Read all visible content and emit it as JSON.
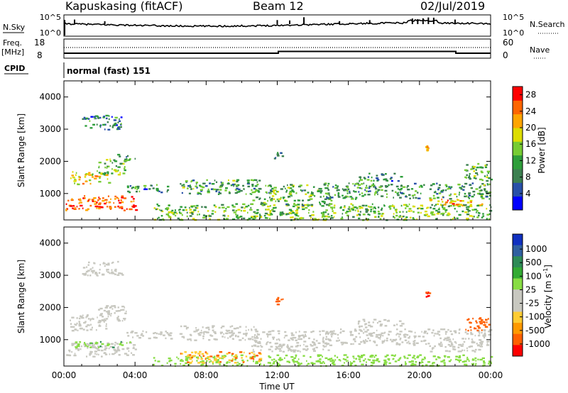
{
  "header": {
    "station": "Kapuskasing (fitACF)",
    "beam": "Beam 12",
    "date": "02/Jul/2019"
  },
  "top_panels": {
    "sky_label": "N.Sky",
    "search_label": "N.Search",
    "left_ticks": [
      "10^5",
      "10^0"
    ],
    "right_ticks": [
      "10^5",
      "10^0"
    ],
    "freq_label": "Freq.",
    "freq_unit": "[MHz]",
    "freq_ticks": [
      "18",
      "8"
    ],
    "nave_label": "Nave",
    "nave_ticks": [
      "60",
      "0"
    ],
    "cpid_label": "CPID",
    "cpid_value": "normal (fast) 151"
  },
  "colors": {
    "power_scale": [
      "#0000ff",
      "#2850a8",
      "#3c8050",
      "#2e9e3a",
      "#77cc33",
      "#dddd00",
      "#ffa500",
      "#ff6600",
      "#ff0000"
    ],
    "velocity_scale": [
      "#ff0000",
      "#ff6000",
      "#ff9900",
      "#ffcc33",
      "#c8c8c0",
      "#c8c8c0",
      "#88dd44",
      "#33aa33",
      "#2e8b57",
      "#3060a0",
      "#1030c0"
    ],
    "ground_scatter": "#c8c8c0"
  },
  "chart_data": [
    {
      "type": "heatmap",
      "name": "power-panel",
      "ylabel": "Slant Range [km]",
      "x_ticks": [
        "00:00",
        "04:00",
        "08:00",
        "12:00",
        "16:00",
        "20:00",
        "00:00"
      ],
      "y_ticks": [
        "1000",
        "2000",
        "3000",
        "4000"
      ],
      "xlim_hours": [
        0,
        24
      ],
      "ylim_km": [
        180,
        4500
      ],
      "colorbar": {
        "label": "Power [dB]",
        "ticks": [
          "4",
          "8",
          "12",
          "16",
          "20",
          "24",
          "28"
        ],
        "range": [
          0,
          30
        ]
      },
      "regions": [
        {
          "t0": 0.0,
          "t1": 4.0,
          "r0": 500,
          "r1": 950,
          "level": 26
        },
        {
          "t0": 0.3,
          "t1": 2.5,
          "r0": 1300,
          "r1": 1700,
          "level": 19
        },
        {
          "t0": 1.8,
          "t1": 3.5,
          "r0": 1600,
          "r1": 2100,
          "level": 14
        },
        {
          "t0": 1.0,
          "t1": 3.3,
          "r0": 3000,
          "r1": 3450,
          "level": 8
        },
        {
          "t0": 3.0,
          "t1": 4.0,
          "r0": 2050,
          "r1": 2250,
          "level": 11
        },
        {
          "t0": 3.5,
          "t1": 6.0,
          "r0": 1050,
          "r1": 1300,
          "level": 9
        },
        {
          "t0": 5.0,
          "t1": 24.0,
          "r0": 200,
          "r1": 700,
          "level": 14
        },
        {
          "t0": 6.5,
          "t1": 11.0,
          "r0": 1000,
          "r1": 1450,
          "level": 11
        },
        {
          "t0": 10.5,
          "t1": 15.0,
          "r0": 650,
          "r1": 1300,
          "level": 12
        },
        {
          "t0": 14.5,
          "t1": 24.0,
          "r0": 850,
          "r1": 1350,
          "level": 11
        },
        {
          "t0": 16.5,
          "t1": 19.0,
          "r0": 1400,
          "r1": 1650,
          "level": 9
        },
        {
          "t0": 20.5,
          "t1": 23.5,
          "r0": 650,
          "r1": 850,
          "level": 22
        },
        {
          "t0": 22.5,
          "t1": 24.0,
          "r0": 1400,
          "r1": 1950,
          "level": 12
        },
        {
          "t0": 11.8,
          "t1": 12.3,
          "r0": 2100,
          "r1": 2400,
          "level": 8
        },
        {
          "t0": 20.3,
          "t1": 20.5,
          "r0": 2350,
          "r1": 2500,
          "level": 20
        }
      ]
    },
    {
      "type": "heatmap",
      "name": "velocity-panel",
      "xlabel": "Time UT",
      "ylabel": "Slant Range [km]",
      "x_ticks": [
        "00:00",
        "04:00",
        "08:00",
        "12:00",
        "16:00",
        "20:00",
        "00:00"
      ],
      "y_ticks": [
        "1000",
        "2000",
        "3000",
        "4000"
      ],
      "xlim_hours": [
        0,
        24
      ],
      "ylim_km": [
        180,
        4500
      ],
      "colorbar": {
        "label": "Velocity [m s",
        "label_sup": "-1",
        "label_end": "]",
        "ticks": [
          "1000",
          "500",
          "100",
          "25",
          "-25",
          "-100",
          "-500",
          "-1000"
        ]
      },
      "regions": [
        {
          "t0": 0.0,
          "t1": 4.0,
          "r0": 500,
          "r1": 950,
          "level": "gs"
        },
        {
          "t0": 0.6,
          "t1": 3.8,
          "r0": 780,
          "r1": 960,
          "level": 80
        },
        {
          "t0": 0.3,
          "t1": 2.5,
          "r0": 1300,
          "r1": 1800,
          "level": "gs"
        },
        {
          "t0": 1.8,
          "t1": 3.5,
          "r0": 1600,
          "r1": 2100,
          "level": "gs"
        },
        {
          "t0": 1.0,
          "t1": 3.3,
          "r0": 3000,
          "r1": 3450,
          "level": "gs"
        },
        {
          "t0": 3.5,
          "t1": 6.0,
          "r0": 1050,
          "r1": 1300,
          "level": "gs"
        },
        {
          "t0": 5.0,
          "t1": 24.0,
          "r0": 200,
          "r1": 550,
          "level": 60
        },
        {
          "t0": 6.5,
          "t1": 11.0,
          "r0": 300,
          "r1": 650,
          "level": -80
        },
        {
          "t0": 6.5,
          "t1": 11.0,
          "r0": 1000,
          "r1": 1450,
          "level": "gs"
        },
        {
          "t0": 10.5,
          "t1": 15.0,
          "r0": 650,
          "r1": 1300,
          "level": "gs"
        },
        {
          "t0": 14.5,
          "t1": 24.0,
          "r0": 850,
          "r1": 1350,
          "level": "gs"
        },
        {
          "t0": 16.5,
          "t1": 19.0,
          "r0": 1400,
          "r1": 1650,
          "level": "gs"
        },
        {
          "t0": 20.5,
          "t1": 23.5,
          "r0": 650,
          "r1": 850,
          "level": "gs"
        },
        {
          "t0": 22.5,
          "t1": 24.0,
          "r0": 1300,
          "r1": 1700,
          "level": -200
        },
        {
          "t0": 11.8,
          "t1": 12.3,
          "r0": 2100,
          "r1": 2400,
          "level": -300
        },
        {
          "t0": 20.3,
          "t1": 20.5,
          "r0": 2350,
          "r1": 2500,
          "level": -700
        }
      ]
    }
  ]
}
